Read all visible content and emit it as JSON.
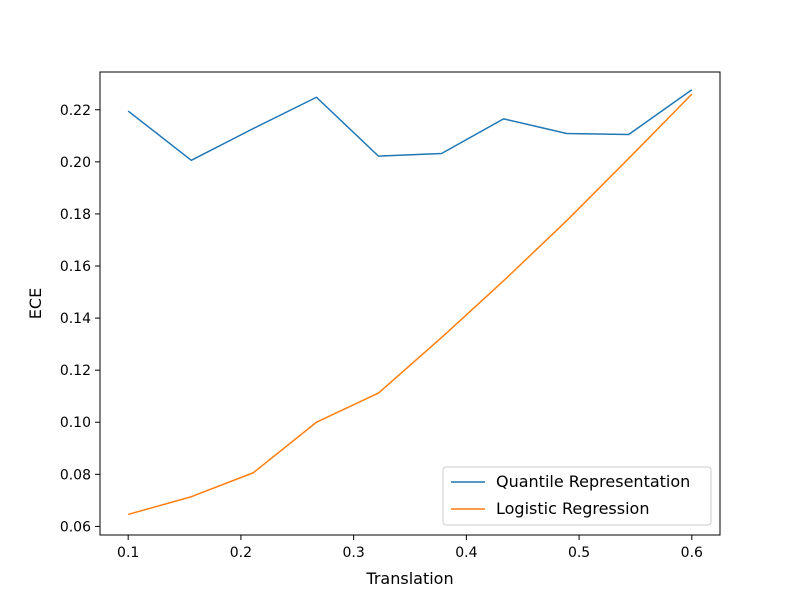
{
  "chart_data": {
    "type": "line",
    "title": "",
    "xlabel": "Translation",
    "ylabel": "ECE",
    "xlim": [
      0.075,
      0.625
    ],
    "ylim": [
      0.0567,
      0.2345
    ],
    "x_ticks": [
      0.1,
      0.2,
      0.3,
      0.4,
      0.5,
      0.6
    ],
    "x_tick_labels": [
      "0.1",
      "0.2",
      "0.3",
      "0.4",
      "0.5",
      "0.6"
    ],
    "y_ticks": [
      0.06,
      0.08,
      0.1,
      0.12,
      0.14,
      0.16,
      0.18,
      0.2,
      0.22
    ],
    "y_tick_labels": [
      "0.06",
      "0.08",
      "0.10",
      "0.12",
      "0.14",
      "0.16",
      "0.18",
      "0.20",
      "0.22"
    ],
    "grid": false,
    "legend_position": "bottom-right",
    "x": [
      0.1,
      0.156,
      0.211,
      0.267,
      0.322,
      0.378,
      0.433,
      0.489,
      0.544,
      0.6
    ],
    "series": [
      {
        "name": "Quantile Representation",
        "color": "#1f77b4",
        "values": [
          0.2195,
          0.2006,
          0.2128,
          0.2248,
          0.2022,
          0.2032,
          0.2165,
          0.2109,
          0.2105,
          0.2277
        ]
      },
      {
        "name": "Logistic Regression",
        "color": "#ff7f0e",
        "values": [
          0.0646,
          0.0714,
          0.0806,
          0.1,
          0.1112,
          0.1325,
          0.1543,
          0.1774,
          0.2013,
          0.226
        ]
      }
    ]
  }
}
